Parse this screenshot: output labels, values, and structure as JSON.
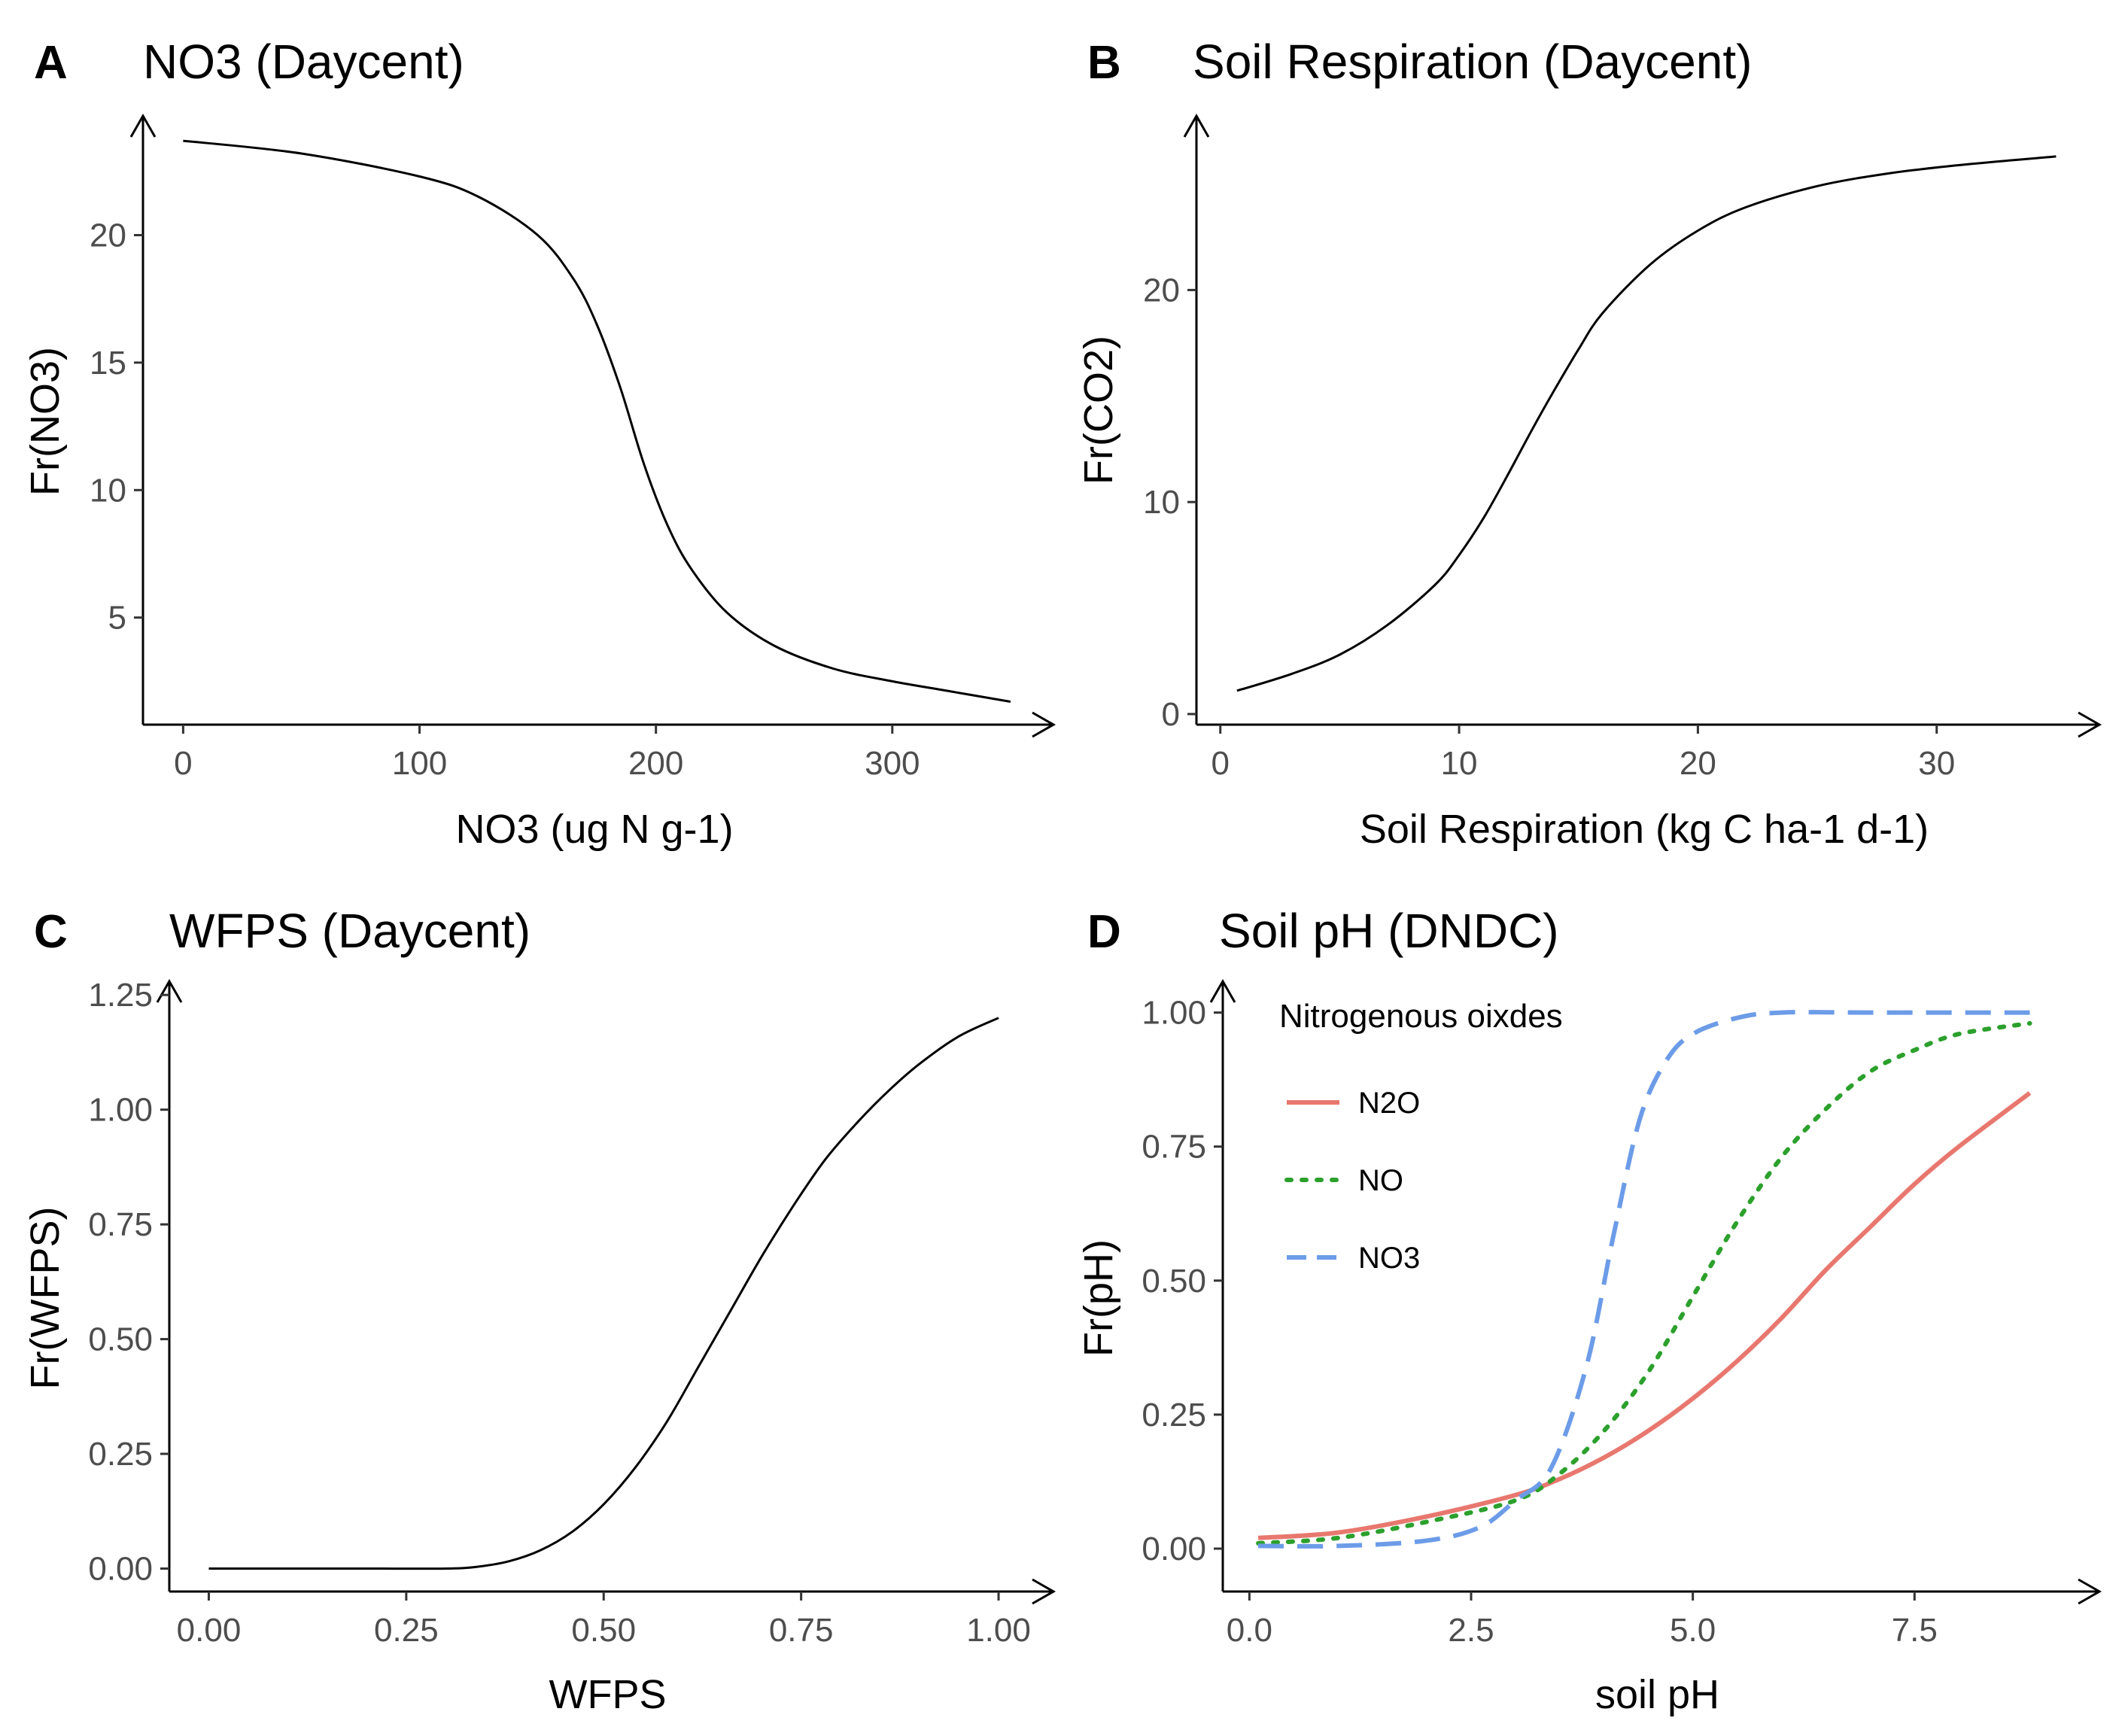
{
  "chart_data": [
    {
      "panel": "A",
      "type": "line",
      "title": "NO3 (Daycent)",
      "xlabel": "NO3 (ug N g-1)",
      "ylabel": "Fr(NO3)",
      "xlim": [
        -17,
        365
      ],
      "ylim": [
        0.8,
        24.5
      ],
      "xticks": [
        0,
        100,
        200,
        300
      ],
      "xtick_labels": [
        "0",
        "100",
        "200",
        "300"
      ],
      "yticks": [
        5,
        10,
        15,
        20
      ],
      "ytick_labels": [
        "5",
        "10",
        "15",
        "20"
      ],
      "series": [
        {
          "name": "Fr(NO3)",
          "color": "#000000",
          "dash": "solid",
          "x": [
            0,
            50,
            100,
            125,
            150,
            165,
            175,
            185,
            195,
            205,
            215,
            230,
            250,
            275,
            300,
            325,
            350
          ],
          "y": [
            23.7,
            23.2,
            22.3,
            21.5,
            20.0,
            18.3,
            16.5,
            14.0,
            11.0,
            8.6,
            6.9,
            5.2,
            3.9,
            3.0,
            2.5,
            2.1,
            1.7
          ]
        }
      ]
    },
    {
      "panel": "B",
      "type": "line",
      "title": "Soil Respiration (Daycent)",
      "xlabel": "Soil Respiration (kg C ha-1 d-1)",
      "ylabel": "Fr(CO2)",
      "xlim": [
        -1,
        36.5
      ],
      "ylim": [
        -0.5,
        28
      ],
      "xticks": [
        0,
        10,
        20,
        30
      ],
      "xtick_labels": [
        "0",
        "10",
        "20",
        "30"
      ],
      "yticks": [
        0,
        10,
        20
      ],
      "ytick_labels": [
        "0",
        "10",
        "20"
      ],
      "series": [
        {
          "name": "Fr(CO2)",
          "color": "#000000",
          "dash": "solid",
          "x": [
            0.7,
            3,
            5,
            7,
            9,
            10,
            11,
            12,
            13,
            14,
            15,
            16,
            18,
            20,
            22,
            25,
            28,
            31,
            35
          ],
          "y": [
            1.1,
            1.9,
            2.8,
            4.2,
            6.1,
            7.5,
            9.2,
            11.2,
            13.3,
            15.3,
            17.2,
            18.9,
            21.2,
            22.8,
            23.9,
            24.9,
            25.5,
            25.9,
            26.3
          ]
        }
      ]
    },
    {
      "panel": "C",
      "type": "line",
      "title": "WFPS (Daycent)",
      "xlabel": "WFPS",
      "ylabel": "Fr(WFPS)",
      "xlim": [
        -0.05,
        1.06
      ],
      "ylim": [
        -0.05,
        1.27
      ],
      "xticks": [
        0.0,
        0.25,
        0.5,
        0.75,
        1.0
      ],
      "xtick_labels": [
        "0.00",
        "0.25",
        "0.50",
        "0.75",
        "1.00"
      ],
      "yticks": [
        0.0,
        0.25,
        0.5,
        0.75,
        1.0,
        1.25
      ],
      "ytick_labels": [
        "0.00",
        "0.25",
        "0.50",
        "0.75",
        "1.00",
        "1.25"
      ],
      "series": [
        {
          "name": "Fr(WFPS)",
          "color": "#000000",
          "dash": "solid",
          "x": [
            0.0,
            0.1,
            0.2,
            0.3,
            0.34,
            0.38,
            0.42,
            0.46,
            0.5,
            0.54,
            0.58,
            0.62,
            0.66,
            0.7,
            0.74,
            0.78,
            0.82,
            0.86,
            0.9,
            0.95,
            1.0
          ],
          "y": [
            0.0,
            0.0,
            0.0,
            0.0,
            0.004,
            0.016,
            0.04,
            0.08,
            0.14,
            0.22,
            0.32,
            0.44,
            0.56,
            0.68,
            0.79,
            0.89,
            0.97,
            1.04,
            1.1,
            1.16,
            1.2
          ]
        }
      ]
    },
    {
      "panel": "D",
      "type": "line",
      "title": "Soil pH (DNDC)",
      "xlabel": "soil pH",
      "ylabel": "Fr(pH)",
      "xlim": [
        -0.3,
        9.5
      ],
      "ylim": [
        -0.08,
        1.05
      ],
      "xticks": [
        0.0,
        2.5,
        5.0,
        7.5
      ],
      "xtick_labels": [
        "0.0",
        "2.5",
        "5.0",
        "7.5"
      ],
      "yticks": [
        0.0,
        0.25,
        0.5,
        0.75,
        1.0
      ],
      "ytick_labels": [
        "0.00",
        "0.25",
        "0.50",
        "0.75",
        "1.00"
      ],
      "legend_title": "Nitrogenous oixdes",
      "legend_position": "top-left",
      "series": [
        {
          "name": "N2O",
          "color": "#e8786f",
          "dash": "solid",
          "x": [
            0.1,
            1,
            2,
            3,
            3.5,
            4,
            4.5,
            5,
            5.5,
            6,
            6.5,
            7,
            7.5,
            8,
            8.8
          ],
          "y": [
            0.02,
            0.03,
            0.06,
            0.1,
            0.13,
            0.17,
            0.22,
            0.28,
            0.35,
            0.43,
            0.52,
            0.6,
            0.68,
            0.75,
            0.85
          ]
        },
        {
          "name": "NO",
          "color": "#2ca02c",
          "dash": "dotted",
          "x": [
            0.1,
            1,
            2,
            3,
            3.5,
            4,
            4.5,
            5,
            5.5,
            6,
            6.5,
            7,
            7.5,
            8,
            8.8
          ],
          "y": [
            0.01,
            0.02,
            0.05,
            0.09,
            0.14,
            0.22,
            0.33,
            0.47,
            0.61,
            0.73,
            0.82,
            0.89,
            0.93,
            0.96,
            0.98
          ]
        },
        {
          "name": "NO3",
          "color": "#6c9ce8",
          "dash": "dashed",
          "x": [
            0.1,
            1,
            2,
            2.6,
            3.0,
            3.4,
            3.8,
            4.1,
            4.4,
            4.7,
            5.0,
            5.5,
            6.0,
            7.0,
            8.8
          ],
          "y": [
            0.005,
            0.005,
            0.015,
            0.04,
            0.09,
            0.15,
            0.34,
            0.58,
            0.8,
            0.91,
            0.96,
            0.99,
            1.0,
            1.0,
            1.0
          ]
        }
      ]
    }
  ]
}
